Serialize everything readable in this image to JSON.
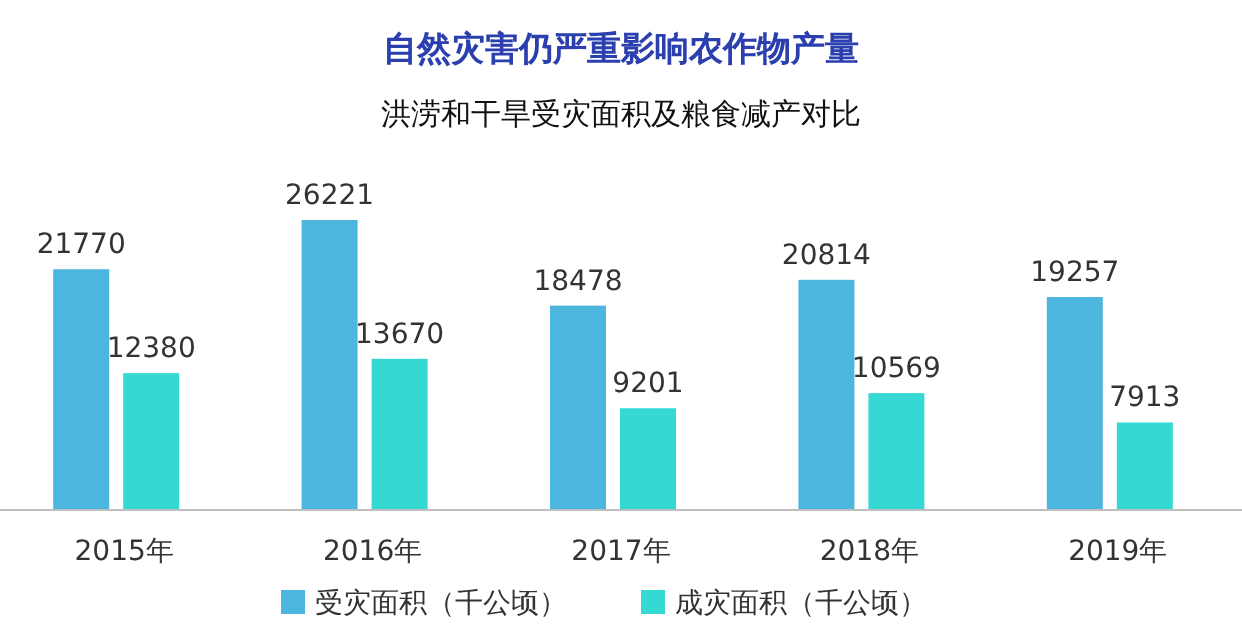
{
  "chart_data": {
    "type": "bar",
    "title": "自然灾害仍严重影响农作物产量",
    "subtitle": "洪涝和干旱受灾面积及粮食减产对比",
    "categories": [
      "2015年",
      "2016年",
      "2017年",
      "2018年",
      "2019年"
    ],
    "series": [
      {
        "name": "受灾面积（千公顷）",
        "color": "#4db6de",
        "values": [
          21770,
          26221,
          18478,
          20814,
          19257
        ]
      },
      {
        "name": "成灾面积（千公顷）",
        "color": "#36d8d4",
        "values": [
          12380,
          13670,
          9201,
          10569,
          7913
        ]
      }
    ],
    "data_labels": true,
    "legend": "bottom"
  }
}
